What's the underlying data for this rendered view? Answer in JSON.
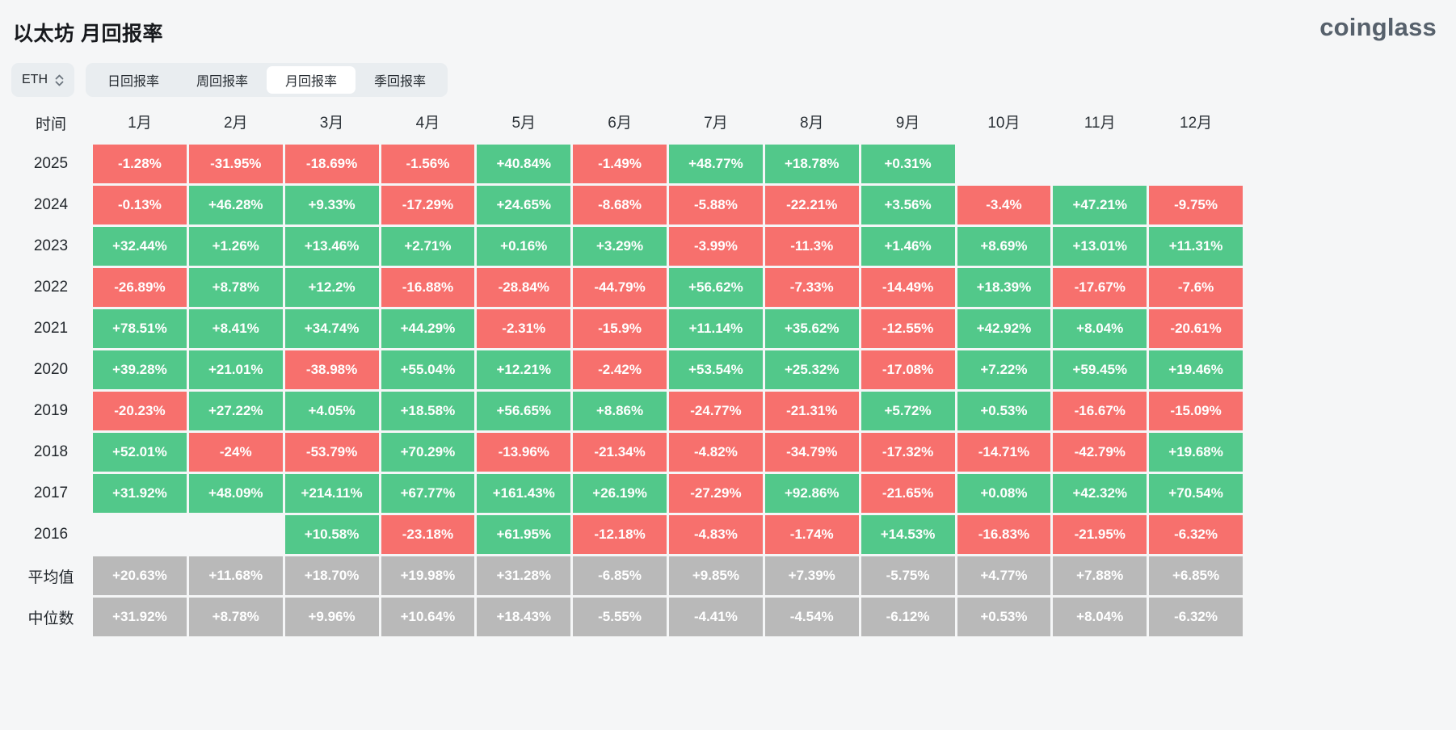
{
  "page": {
    "title": "以太坊 月回报率",
    "logo": "coinglass"
  },
  "controls": {
    "symbol": "ETH",
    "symbol_select_icon": "updown-caret-icon",
    "tabs": [
      {
        "label": "日回报率",
        "active": false
      },
      {
        "label": "周回报率",
        "active": false
      },
      {
        "label": "月回报率",
        "active": true
      },
      {
        "label": "季回报率",
        "active": false
      }
    ]
  },
  "colors": {
    "positive": "#52c88a",
    "negative": "#f7706d",
    "neutral": "#b9b9b9",
    "background": "#f5f6f7",
    "tab_bar": "#e9edf0",
    "active_tab": "#ffffff"
  },
  "chart_data": {
    "type": "heatmap",
    "title": "以太坊 月回报率",
    "unit": "%",
    "corner_label": "时间",
    "columns": [
      "1月",
      "2月",
      "3月",
      "4月",
      "5月",
      "6月",
      "7月",
      "8月",
      "9月",
      "10月",
      "11月",
      "12月"
    ],
    "rows": [
      {
        "label": "2025",
        "type": "year",
        "values": [
          "-1.28%",
          "-31.95%",
          "-18.69%",
          "-1.56%",
          "+40.84%",
          "-1.49%",
          "+48.77%",
          "+18.78%",
          "+0.31%",
          "",
          "",
          ""
        ]
      },
      {
        "label": "2024",
        "type": "year",
        "values": [
          "-0.13%",
          "+46.28%",
          "+9.33%",
          "-17.29%",
          "+24.65%",
          "-8.68%",
          "-5.88%",
          "-22.21%",
          "+3.56%",
          "-3.4%",
          "+47.21%",
          "-9.75%"
        ]
      },
      {
        "label": "2023",
        "type": "year",
        "values": [
          "+32.44%",
          "+1.26%",
          "+13.46%",
          "+2.71%",
          "+0.16%",
          "+3.29%",
          "-3.99%",
          "-11.3%",
          "+1.46%",
          "+8.69%",
          "+13.01%",
          "+11.31%"
        ]
      },
      {
        "label": "2022",
        "type": "year",
        "values": [
          "-26.89%",
          "+8.78%",
          "+12.2%",
          "-16.88%",
          "-28.84%",
          "-44.79%",
          "+56.62%",
          "-7.33%",
          "-14.49%",
          "+18.39%",
          "-17.67%",
          "-7.6%"
        ]
      },
      {
        "label": "2021",
        "type": "year",
        "values": [
          "+78.51%",
          "+8.41%",
          "+34.74%",
          "+44.29%",
          "-2.31%",
          "-15.9%",
          "+11.14%",
          "+35.62%",
          "-12.55%",
          "+42.92%",
          "+8.04%",
          "-20.61%"
        ]
      },
      {
        "label": "2020",
        "type": "year",
        "values": [
          "+39.28%",
          "+21.01%",
          "-38.98%",
          "+55.04%",
          "+12.21%",
          "-2.42%",
          "+53.54%",
          "+25.32%",
          "-17.08%",
          "+7.22%",
          "+59.45%",
          "+19.46%"
        ]
      },
      {
        "label": "2019",
        "type": "year",
        "values": [
          "-20.23%",
          "+27.22%",
          "+4.05%",
          "+18.58%",
          "+56.65%",
          "+8.86%",
          "-24.77%",
          "-21.31%",
          "+5.72%",
          "+0.53%",
          "-16.67%",
          "-15.09%"
        ]
      },
      {
        "label": "2018",
        "type": "year",
        "values": [
          "+52.01%",
          "-24%",
          "-53.79%",
          "+70.29%",
          "-13.96%",
          "-21.34%",
          "-4.82%",
          "-34.79%",
          "-17.32%",
          "-14.71%",
          "-42.79%",
          "+19.68%"
        ]
      },
      {
        "label": "2017",
        "type": "year",
        "values": [
          "+31.92%",
          "+48.09%",
          "+214.11%",
          "+67.77%",
          "+161.43%",
          "+26.19%",
          "-27.29%",
          "+92.86%",
          "-21.65%",
          "+0.08%",
          "+42.32%",
          "+70.54%"
        ]
      },
      {
        "label": "2016",
        "type": "year",
        "values": [
          "",
          "",
          "+10.58%",
          "-23.18%",
          "+61.95%",
          "-12.18%",
          "-4.83%",
          "-1.74%",
          "+14.53%",
          "-16.83%",
          "-21.95%",
          "-6.32%"
        ]
      },
      {
        "label": "平均值",
        "type": "summary",
        "values": [
          "+20.63%",
          "+11.68%",
          "+18.70%",
          "+19.98%",
          "+31.28%",
          "-6.85%",
          "+9.85%",
          "+7.39%",
          "-5.75%",
          "+4.77%",
          "+7.88%",
          "+6.85%"
        ]
      },
      {
        "label": "中位数",
        "type": "summary",
        "values": [
          "+31.92%",
          "+8.78%",
          "+9.96%",
          "+10.64%",
          "+18.43%",
          "-5.55%",
          "-4.41%",
          "-4.54%",
          "-6.12%",
          "+0.53%",
          "+8.04%",
          "-6.32%"
        ]
      }
    ]
  }
}
